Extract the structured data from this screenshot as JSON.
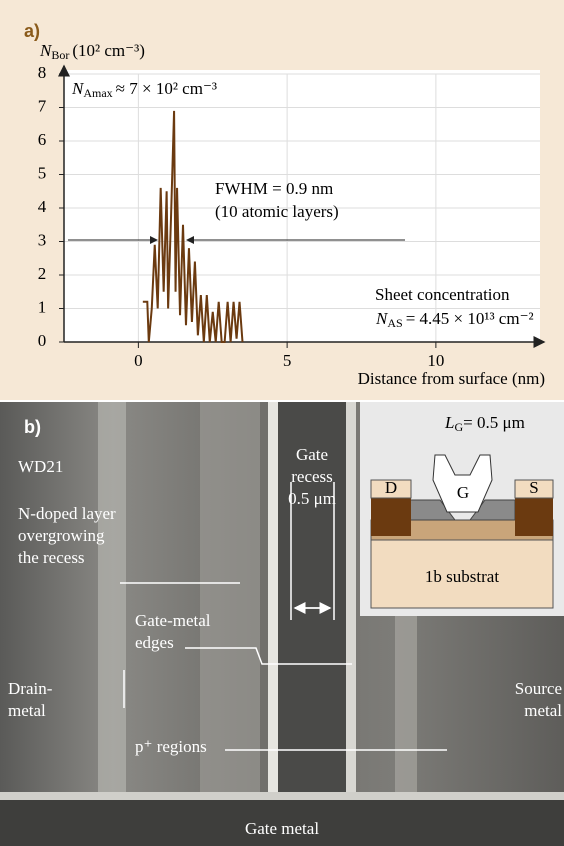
{
  "chart_data": {
    "type": "line",
    "panel_label": "a)",
    "y_label_symbol": "N",
    "y_label_subscript": "Bor",
    "y_label_unit": "(10² cm⁻³)",
    "x_label": "Distance from surface (nm)",
    "annotations": {
      "peak_symbol": "N",
      "peak_subscript": "Amax",
      "peak_text": "≈ 7 × 10² cm⁻³",
      "fwhm": "FWHM = 0.9 nm",
      "fwhm_note": "(10 atomic layers)",
      "sheet": "Sheet concentration",
      "sheet_symbol": "N",
      "sheet_subscript": "AS",
      "sheet_text": "= 4.45 × 10¹³ cm⁻²"
    },
    "x": [
      0.15,
      0.3,
      0.35,
      0.45,
      0.55,
      0.65,
      0.75,
      0.85,
      0.95,
      1.0,
      1.1,
      1.2,
      1.25,
      1.3,
      1.4,
      1.5,
      1.6,
      1.7,
      1.8,
      1.9,
      2.0,
      2.1,
      2.2,
      2.3,
      2.4,
      2.5,
      2.6,
      2.7,
      2.8,
      2.9,
      3.0,
      3.1,
      3.2,
      3.3,
      3.4,
      3.5
    ],
    "series": [
      {
        "color": "#6b3a10",
        "values": [
          1.2,
          1.2,
          0,
          1.0,
          2.9,
          1.0,
          4.6,
          1.5,
          4.5,
          1.0,
          3.8,
          6.9,
          1.5,
          4.6,
          0.8,
          3.5,
          0.5,
          2.8,
          0.6,
          2.4,
          0.2,
          1.4,
          0,
          1.4,
          0,
          0.9,
          0,
          1.2,
          0,
          0,
          1.2,
          0,
          1.2,
          0.1,
          1.2,
          0
        ]
      }
    ],
    "xlim": [
      -2.5,
      13.5
    ],
    "ylim": [
      0,
      8
    ],
    "xticks": [
      0,
      5,
      10
    ],
    "yticks": [
      0,
      1,
      2,
      3,
      4,
      5,
      6,
      7,
      8
    ],
    "grid": true
  },
  "panel_b": {
    "panel_label": "b)",
    "sample": "WD21",
    "labels": [
      "N-doped layer",
      "overgrowing",
      "the recess",
      "Gate",
      "recess",
      "0.5 μm",
      "Gate-metal",
      "edges",
      "Drain-",
      "metal",
      "Source",
      "metal",
      "p⁺ regions",
      "Gate metal"
    ],
    "inset": {
      "gate_length_symbol": "L",
      "gate_length_subscript": "G",
      "gate_length_text": "= 0.5 μm",
      "drain": "D",
      "gate": "G",
      "source": "S",
      "substrate": "1b substrat"
    }
  }
}
